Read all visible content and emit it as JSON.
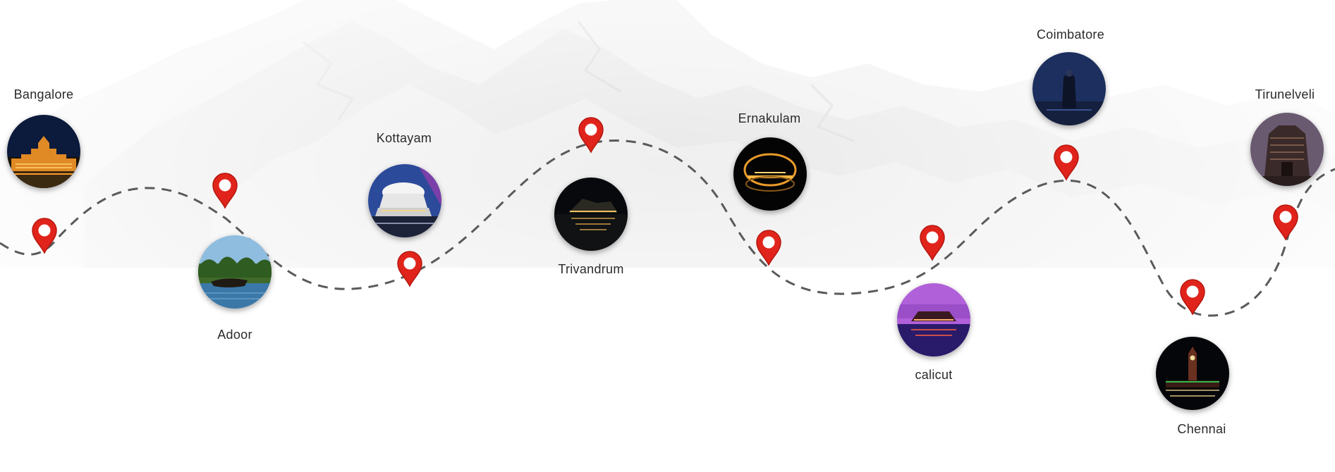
{
  "stops": [
    {
      "id": "bangalore",
      "name": "Bangalore",
      "image": "bangalore-palace-night-photo"
    },
    {
      "id": "adoor",
      "name": "Adoor",
      "image": "backwater-boats-photo"
    },
    {
      "id": "kottayam",
      "name": "Kottayam",
      "image": "white-dome-building-photo"
    },
    {
      "id": "trivandrum",
      "name": "Trivandrum",
      "image": "night-lake-reflection-photo"
    },
    {
      "id": "ernakulam",
      "name": "Ernakulam",
      "image": "golden-arch-night-photo"
    },
    {
      "id": "calicut",
      "name": "calicut",
      "image": "purple-houseboat-photo"
    },
    {
      "id": "coimbatore",
      "name": "Coimbatore",
      "image": "shiva-statue-night-photo"
    },
    {
      "id": "chennai",
      "name": "Chennai",
      "image": "clock-tower-night-photo"
    },
    {
      "id": "tirunelveli",
      "name": "Tirunelveli",
      "image": "temple-gopuram-photo"
    }
  ],
  "colors": {
    "pin": "#e0241b",
    "pin_dark": "#b5170f",
    "route": "#5a5a5a",
    "label": "#2a2a2a"
  },
  "icons": {
    "pin": "location-pin-icon"
  }
}
